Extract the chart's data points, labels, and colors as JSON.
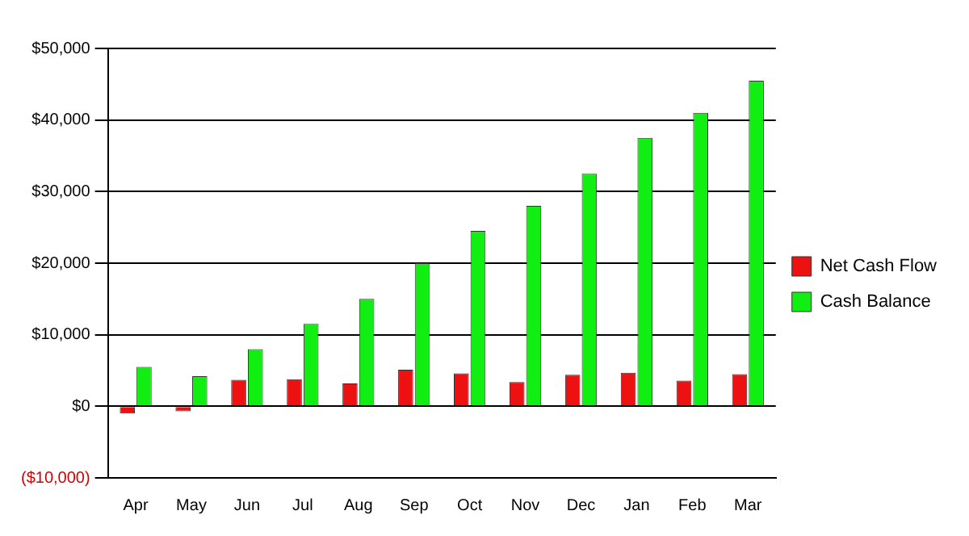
{
  "chart_data": {
    "type": "bar",
    "categories": [
      "Apr",
      "May",
      "Jun",
      "Jul",
      "Aug",
      "Sep",
      "Oct",
      "Nov",
      "Dec",
      "Jan",
      "Feb",
      "Mar"
    ],
    "series": [
      {
        "name": "Net Cash Flow",
        "color": "#ee1111",
        "values": [
          -1000,
          -700,
          3700,
          3800,
          3200,
          5100,
          4600,
          3400,
          4400,
          4700,
          3600,
          4500
        ]
      },
      {
        "name": "Cash Balance",
        "color": "#11ee11",
        "values": [
          5500,
          4200,
          8000,
          11500,
          15000,
          20000,
          24500,
          28000,
          32500,
          37500,
          41000,
          45500
        ]
      }
    ],
    "ylim": [
      -10000,
      50000
    ],
    "yticks": [
      {
        "value": -10000,
        "label": "($10,000)"
      },
      {
        "value": 0,
        "label": "$0"
      },
      {
        "value": 10000,
        "label": "$10,000"
      },
      {
        "value": 20000,
        "label": "$20,000"
      },
      {
        "value": 30000,
        "label": "$30,000"
      },
      {
        "value": 40000,
        "label": "$40,000"
      },
      {
        "value": 50000,
        "label": "$50,000"
      }
    ],
    "grid": "y",
    "legend": "right"
  }
}
